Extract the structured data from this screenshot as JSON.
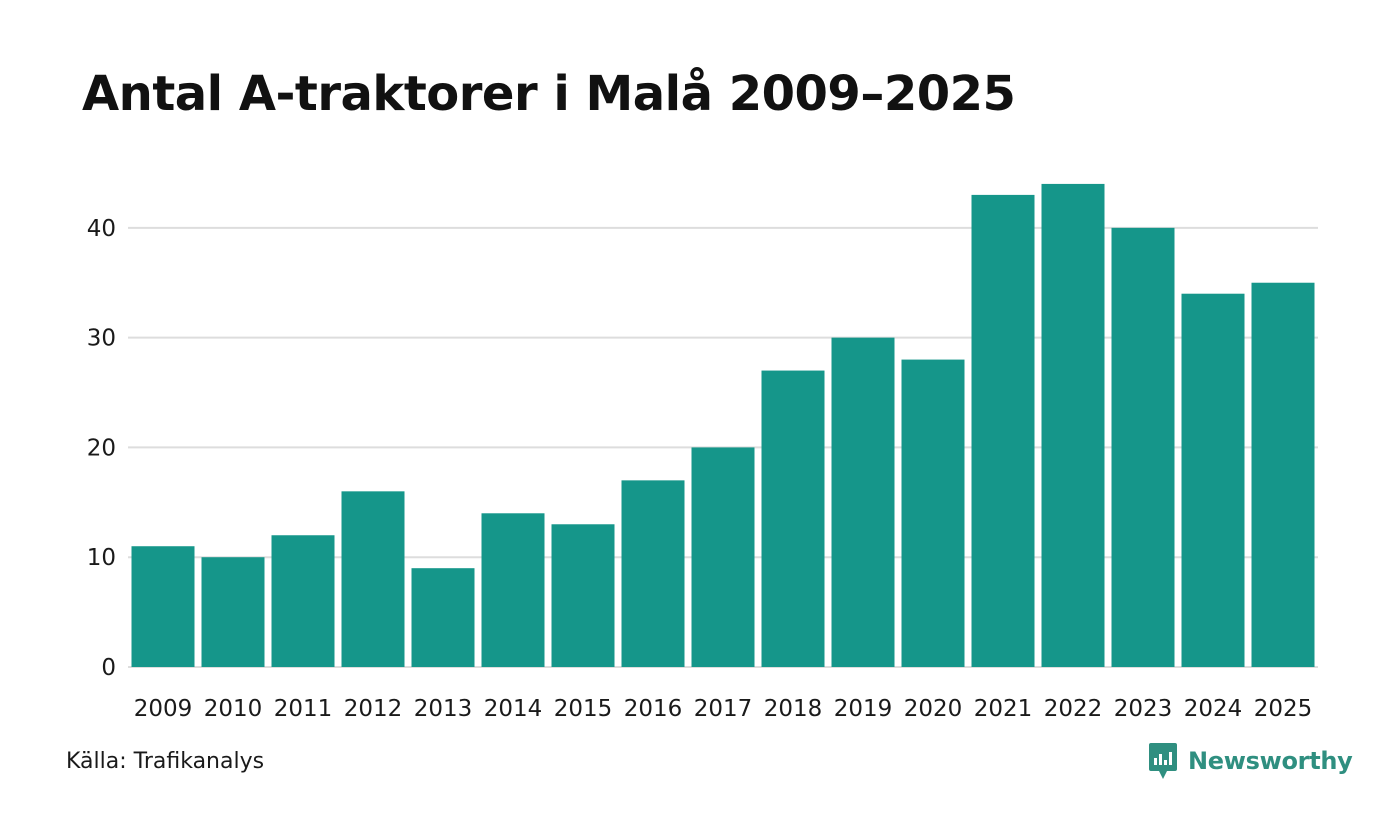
{
  "title": "Antal A-traktorer i Malå 2009–2025",
  "source": "Källa: Trafikanalys",
  "brand": {
    "name": "Newsworthy",
    "icon": "newsworthy-logo-icon",
    "color": "#2f8f80"
  },
  "colors": {
    "bar": "#15968a",
    "grid": "#dddddd"
  },
  "chart_data": {
    "type": "bar",
    "title": "Antal A-traktorer i Malå 2009–2025",
    "xlabel": "",
    "ylabel": "",
    "categories": [
      "2009",
      "2010",
      "2011",
      "2012",
      "2013",
      "2014",
      "2015",
      "2016",
      "2017",
      "2018",
      "2019",
      "2020",
      "2021",
      "2022",
      "2023",
      "2024",
      "2025"
    ],
    "values": [
      11,
      10,
      12,
      16,
      9,
      14,
      13,
      17,
      20,
      27,
      30,
      28,
      43,
      44,
      40,
      34,
      35
    ],
    "ylim": [
      0,
      48
    ],
    "yticks": [
      "0",
      "10",
      "20",
      "30",
      "40"
    ],
    "grid": true,
    "legend": "none"
  }
}
